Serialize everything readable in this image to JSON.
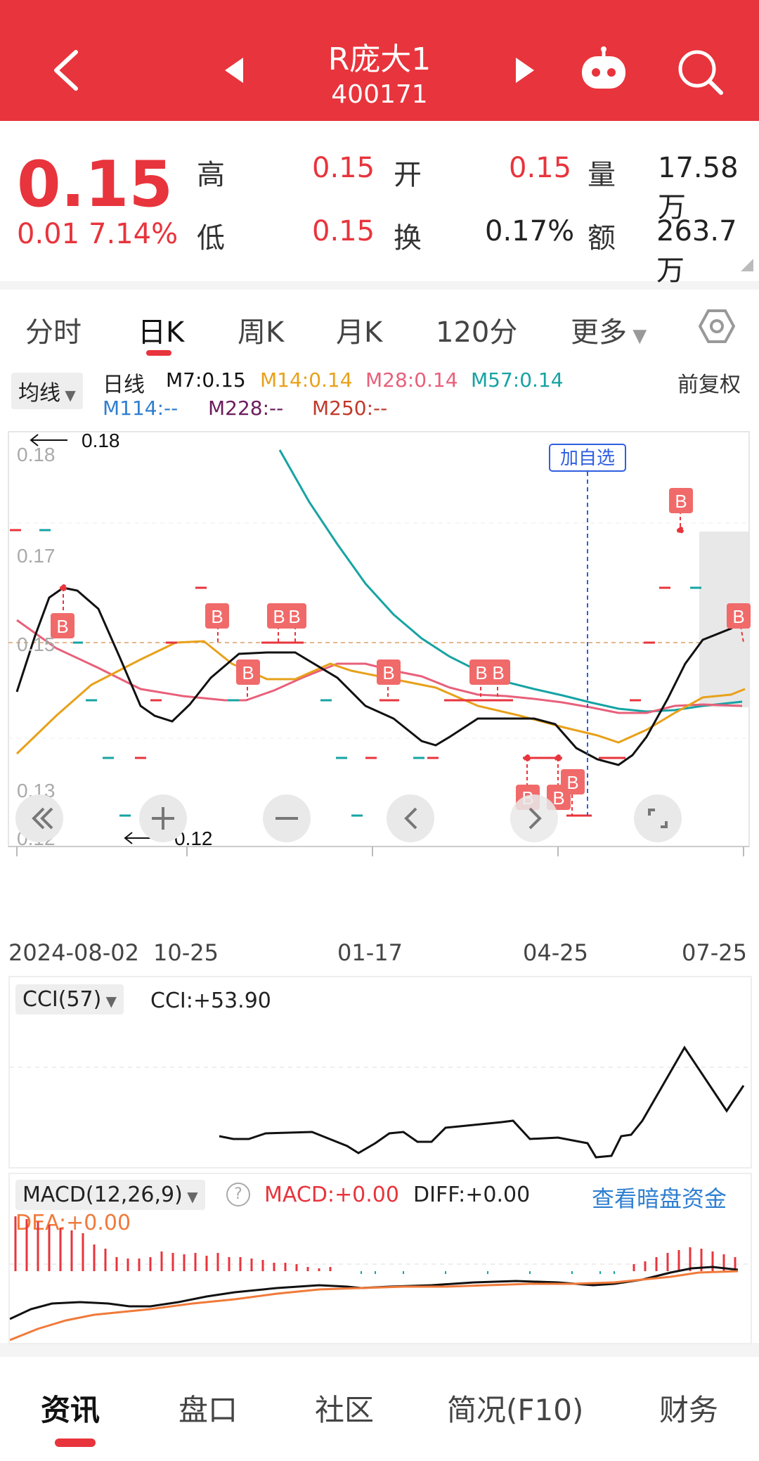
{
  "header": {
    "title": "R庞大1",
    "code": "400171"
  },
  "quote": {
    "price": "0.15",
    "change": "0.01",
    "change_pct": "7.14%",
    "high_label": "高",
    "high": "0.15",
    "open_label": "开",
    "open": "0.15",
    "volume_label": "量",
    "volume": "17.58万",
    "low_label": "低",
    "low": "0.15",
    "turnover_label": "换",
    "turnover": "0.17%",
    "amount_label": "额",
    "amount": "263.7万"
  },
  "tabs": {
    "items": [
      "分时",
      "日K",
      "周K",
      "月K",
      "120分"
    ],
    "more": "更多",
    "active_index": 1
  },
  "main_chart": {
    "indicator_select": "均线",
    "line_label": "日线",
    "ma7": "M7:0.15",
    "ma14": "M14:0.14",
    "ma28": "M28:0.14",
    "ma57": "M57:0.14",
    "ma114": "M114:--",
    "ma228": "M228:--",
    "ma250": "M250:--",
    "adjust": "前复权",
    "max_label": "0.18",
    "min_label": "0.12",
    "add_watch": "加自选",
    "buy_marker": "B",
    "x_labels": [
      "2024-08-02",
      "10-25",
      "01-17",
      "04-25",
      "07-25"
    ],
    "y_labels": [
      "0.18",
      "0.17",
      "0.15",
      "0.13",
      "0.12"
    ],
    "colors": {
      "ma7": "#111111",
      "ma14": "#e8a11a",
      "ma28": "#e8607a",
      "ma57": "#17a3a3",
      "ma114": "#2f7fd0",
      "ma228": "#6b1d5e",
      "ma250": "#c0392b",
      "up": "#e8343c"
    }
  },
  "cci": {
    "select": "CCI(57)",
    "value": "CCI:+53.90"
  },
  "macd": {
    "select": "MACD(12,26,9)",
    "help_icon": "question-icon",
    "macd": "MACD:+0.00",
    "diff": "DIFF:+0.00",
    "dea": "DEA:+0.00",
    "link": "查看暗盘资金"
  },
  "bottom_nav": {
    "items": [
      "资讯",
      "盘口",
      "社区",
      "简况(F10)",
      "财务"
    ],
    "active_index": 0
  }
}
